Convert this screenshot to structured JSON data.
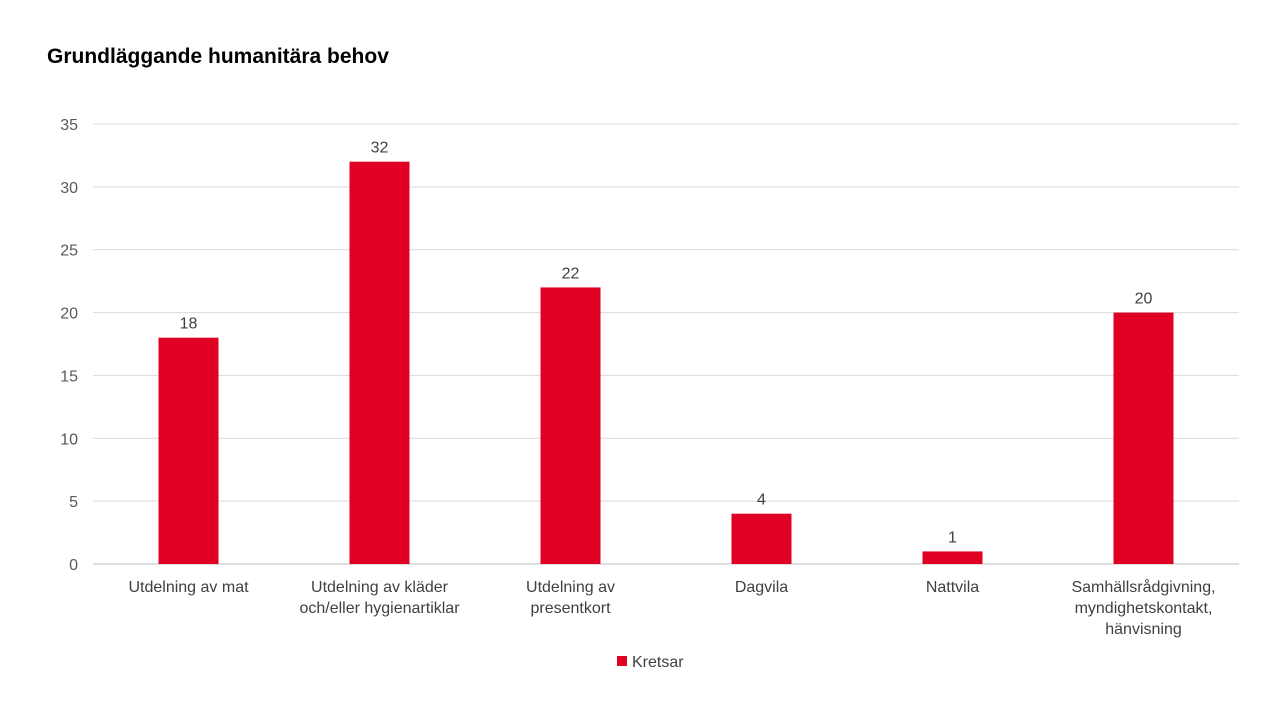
{
  "chart_data": {
    "type": "bar",
    "title": "Grundläggande humanitära behov",
    "xlabel": "",
    "ylabel": "",
    "categories": [
      [
        "Utdelning av mat"
      ],
      [
        "Utdelning av kläder",
        "och/eller hygienartiklar"
      ],
      [
        "Utdelning av",
        "presentkort"
      ],
      [
        "Dagvila"
      ],
      [
        "Nattvila"
      ],
      [
        "Samhällsrådgivning,",
        "myndighetskontakt,",
        "hänvisning"
      ]
    ],
    "series": [
      {
        "name": "Kretsar",
        "color": "#E00024",
        "values": [
          18,
          32,
          22,
          4,
          1,
          20
        ]
      }
    ],
    "ylim": [
      0,
      35
    ],
    "yticks": [
      0,
      5,
      10,
      15,
      20,
      25,
      30,
      35
    ],
    "grid": true,
    "data_labels": true,
    "legend_position": "bottom"
  },
  "colors": {
    "bar": "#E00024",
    "grid": "#D9D9D9",
    "axis": "#BFBFBF"
  }
}
